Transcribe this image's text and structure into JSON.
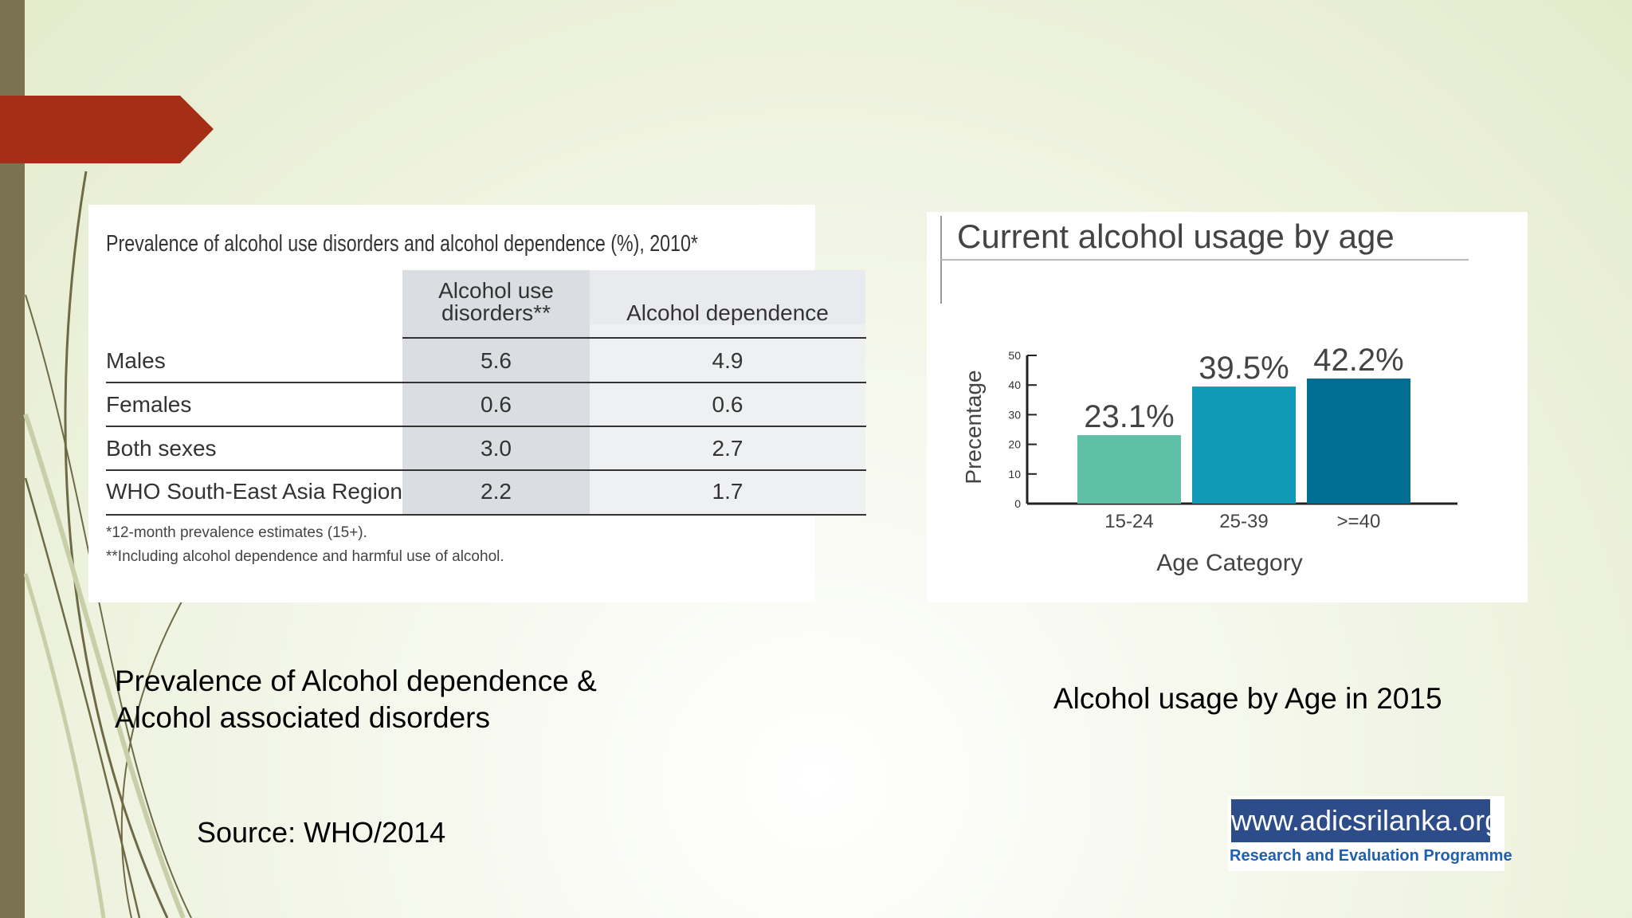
{
  "colors": {
    "left_bar": "#7a7250",
    "red_arrow": "#a52f16",
    "bar_colors": [
      "#5fc0a8",
      "#119ab8",
      "#006e93"
    ],
    "table_header_bg": "#dadde2"
  },
  "table": {
    "title": "Prevalence of alcohol use disorders and alcohol dependence (%), 2010*",
    "col_headers": [
      "Alcohol use\ndisorders**",
      "Alcohol dependence"
    ],
    "col_header_line1": "Alcohol use",
    "col_header_line2": "disorders**",
    "col_header_2": "Alcohol dependence",
    "rows": [
      {
        "label": "Males",
        "aud": "5.6",
        "dep": "4.9"
      },
      {
        "label": "Females",
        "aud": "0.6",
        "dep": "0.6"
      },
      {
        "label": "Both sexes",
        "aud": "3.0",
        "dep": "2.7"
      },
      {
        "label": "WHO South-East Asia Region",
        "aud": "2.2",
        "dep": "1.7"
      }
    ],
    "notes": [
      "*12-month prevalence estimates (15+).",
      "**Including alcohol dependence and harmful use of alcohol."
    ]
  },
  "chart_data": {
    "type": "bar",
    "title": "Current alcohol usage by age",
    "categories": [
      "15-24",
      "25-39",
      ">=40"
    ],
    "values": [
      23.1,
      39.5,
      42.2
    ],
    "value_labels": [
      "23.1%",
      "39.5%",
      "42.2%"
    ],
    "xlabel": "Age Category",
    "ylabel": "Precentage",
    "ylim": [
      0,
      50
    ],
    "yticks": [
      0,
      10,
      20,
      30,
      40,
      50
    ],
    "grid": false
  },
  "captions": {
    "left_line1": "Prevalence of Alcohol dependence &",
    "left_line2": "Alcohol associated disorders",
    "right": "Alcohol usage by Age in 2015",
    "source": "Source: WHO/2014"
  },
  "logo": {
    "url": "www.adicsrilanka.org",
    "subtitle": "Research and Evaluation Programme"
  }
}
